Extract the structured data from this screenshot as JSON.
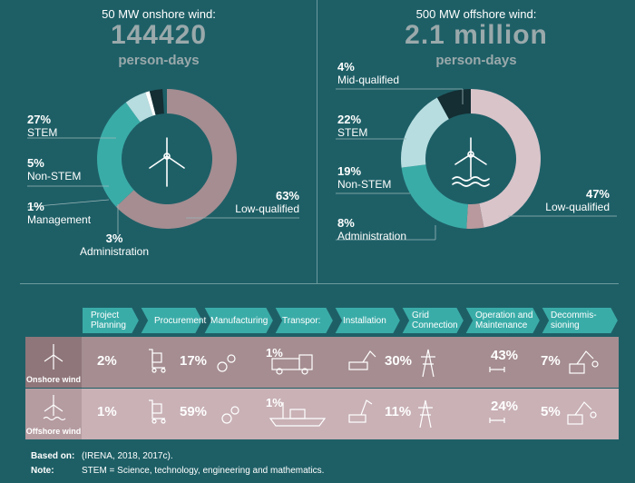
{
  "onshore": {
    "title": "50 MW onshore wind:",
    "big": "144420",
    "unit": "person-days"
  },
  "offshore": {
    "title": "500 MW offshore wind:",
    "big": "2.1 million",
    "unit": "person-days"
  },
  "colors": {
    "background": "#1e5f66",
    "stem": "#3aaca8",
    "nonstem": "#b7dde0",
    "management": "#ffffff",
    "administration": "#142e33",
    "lowqualified_on": "#a58d91",
    "lowqualified_off": "#d9c4ca",
    "midqualified": "#b9999d",
    "onshore_band": "#a58d91",
    "offshore_band": "#c9b1b6",
    "chevron": "#3aaca8"
  },
  "chart_data": [
    {
      "type": "pie",
      "title": "50 MW onshore wind:",
      "slices": [
        {
          "label": "Low-qualified",
          "pct": "63%",
          "value": 63
        },
        {
          "label": "STEM",
          "pct": "27%",
          "value": 27
        },
        {
          "label": "Non-STEM",
          "pct": "5%",
          "value": 5
        },
        {
          "label": "Management",
          "pct": "1%",
          "value": 1
        },
        {
          "label": "Administration",
          "pct": "3%",
          "value": 3
        }
      ]
    },
    {
      "type": "pie",
      "title": "500 MW offshore wind:",
      "slices": [
        {
          "label": "Low-qualified",
          "pct": "47%",
          "value": 47
        },
        {
          "label": "Mid-qualified",
          "pct": "4%",
          "value": 4
        },
        {
          "label": "STEM",
          "pct": "22%",
          "value": 22
        },
        {
          "label": "Non-STEM",
          "pct": "19%",
          "value": 19
        },
        {
          "label": "Administration",
          "pct": "8%",
          "value": 8
        }
      ]
    },
    {
      "type": "table",
      "columns": [
        "Project Planning",
        "Procurement",
        "Manufacturing",
        "Transport",
        "Installation",
        "Grid Connection",
        "Operation and Maintenance",
        "Decommis-sioning"
      ],
      "rows": [
        {
          "name": "Onshore wind",
          "values": [
            "2%",
            "17%",
            "",
            "1%",
            "30%",
            "",
            "43%",
            "7%"
          ]
        },
        {
          "name": "Offshore wind",
          "values": [
            "1%",
            "59%",
            "",
            "1%",
            "11%",
            "",
            "24%",
            "5%"
          ]
        }
      ]
    }
  ],
  "stages": {
    "s1": "Project\nPlanning",
    "s2": "Procurement",
    "s3": "Manufacturing",
    "s4": "Transpor:",
    "s5": "Installation",
    "s6": "Grid\nConnection",
    "s7": "Operation and\nMaintenance",
    "s8": "Decommis-\nsioning"
  },
  "rows": {
    "onshore_label": "Onshore wind",
    "offshore_label": "Offshore wind",
    "onshore": {
      "v1": "2%",
      "v2": "17%",
      "v4": "1%",
      "v5": "30%",
      "v7": "43%",
      "v8": "7%"
    },
    "offshore": {
      "v1": "1%",
      "v2": "59%",
      "v4": "1%",
      "v5": "11%",
      "v7": "24%",
      "v8": "5%"
    }
  },
  "labels_on": {
    "stem_pct": "27%",
    "stem": "STEM",
    "nonstem_pct": "5%",
    "nonstem": "Non-STEM",
    "mgmt_pct": "1%",
    "mgmt": "Management",
    "admin_pct": "3%",
    "admin": "Administration",
    "low_pct": "63%",
    "low": "Low-qualified"
  },
  "labels_off": {
    "mid_pct": "4%",
    "mid": "Mid-qualified",
    "stem_pct": "22%",
    "stem": "STEM",
    "nonstem_pct": "19%",
    "nonstem": "Non-STEM",
    "admin_pct": "8%",
    "admin": "Administration",
    "low_pct": "47%",
    "low": "Low-qualified"
  },
  "footer": {
    "based_label": "Based on:",
    "based_text": "(IRENA, 2018, 2017c).",
    "note_label": "Note:",
    "note_text": "STEM = Science, technology, engineering and mathematics."
  }
}
